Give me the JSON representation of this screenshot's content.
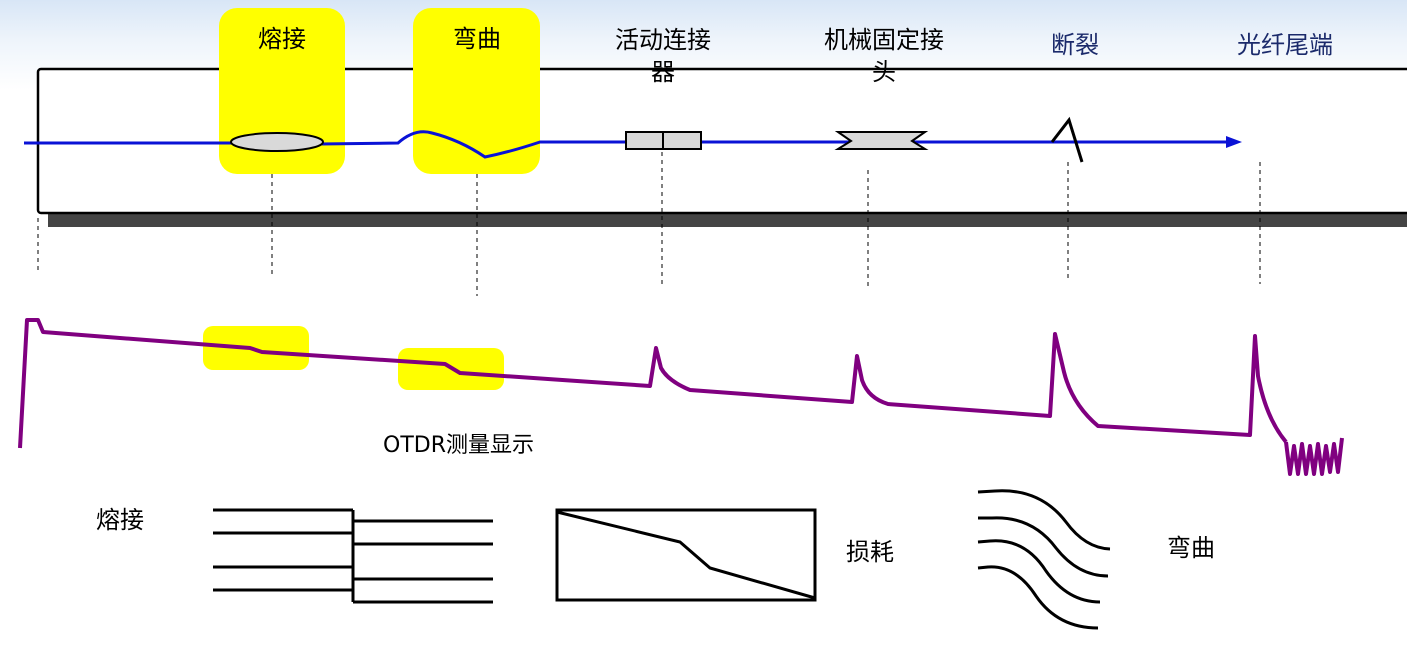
{
  "fiber_labels": {
    "fusion_splice": "熔接",
    "bend": "弯曲",
    "active_connector": "活动连接器",
    "mechanical_splice": "机械固定接头",
    "break": "断裂",
    "fiber_end": "光纤尾端"
  },
  "otdr_caption": "OTDR测量显示",
  "bottom_labels": {
    "fusion": "熔接",
    "loss": "损耗",
    "bend": "弯曲"
  },
  "colors": {
    "fiber": "#0a12d6",
    "trace": "#800080",
    "highlight": "#ffff00",
    "shadow": "#444444"
  }
}
